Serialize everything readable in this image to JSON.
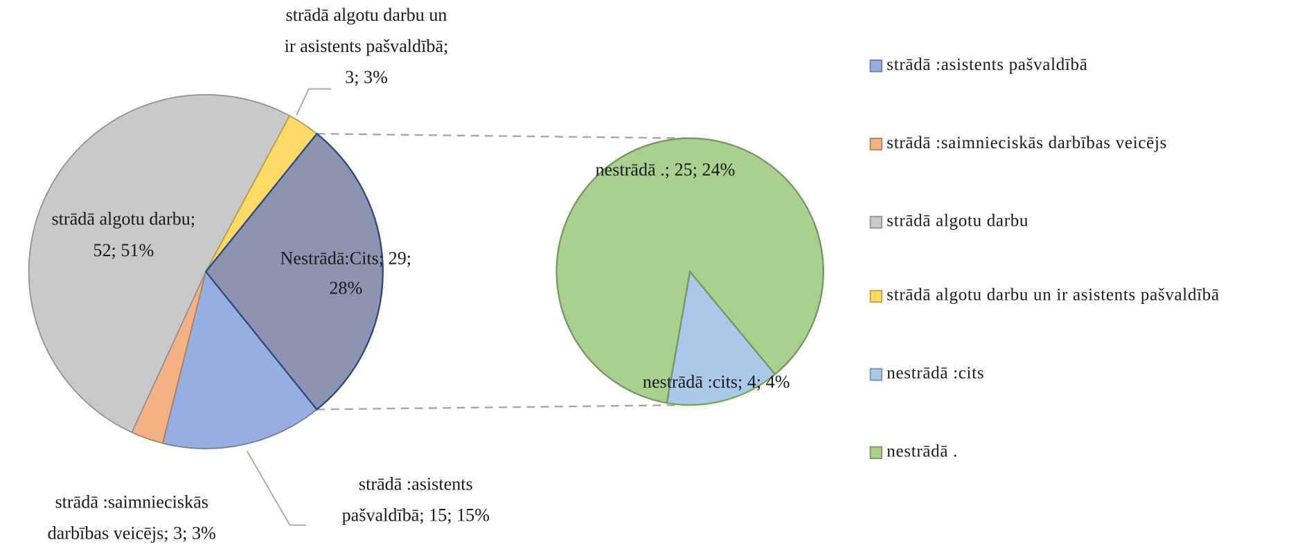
{
  "chart_data": {
    "type": "pie-of-pie",
    "categories": [
      "strādā :asistents pašvaldībā",
      "strādā :saimnieciskās darbības veicējs",
      "strādā algotu darbu",
      "strādā algotu darbu un ir asistents pašvaldībā",
      "nestrādā :cits",
      "nestrādā ."
    ],
    "values": [
      15,
      3,
      52,
      3,
      4,
      25
    ],
    "percents": [
      15,
      3,
      51,
      3,
      4,
      24
    ],
    "colors": [
      "#97aee0",
      "#f4b183",
      "#c9c9c9",
      "#ffd966",
      "#a9c8ea",
      "#a9d18e"
    ],
    "value_labels": [
      [
        "strādā :asistents",
        "pašvaldībā; 15; 15%"
      ],
      [
        "strādā :saimnieciskās",
        "darbības veicējs; 3; 3%"
      ],
      [
        "strādā algotu  darbu;",
        "52; 51%"
      ],
      [
        "strādā algotu  darbu un",
        "ir asistents pašvaldībā;",
        "3; 3%"
      ],
      [
        "nestrādā :cits; 4; 4%"
      ],
      [
        "nestrādā .; 25; 24%"
      ]
    ],
    "other": {
      "label": [
        "Nestrādā:Cits;  29;",
        "28%"
      ],
      "value": 29,
      "percent": 28,
      "color": "#8c94b0"
    },
    "split_last": 2,
    "legend": "right"
  }
}
